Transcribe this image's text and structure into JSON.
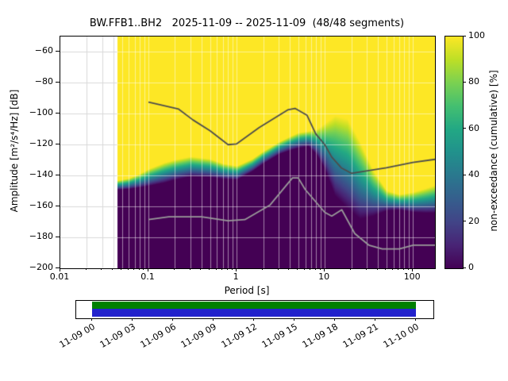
{
  "title": "BW.FFB1..BH2   2025-11-09 -- 2025-11-09  (48/48 segments)",
  "axes": {
    "xlabel": "Period [s]",
    "ylabel": "Amplitude [m²/s⁴/Hz] [dB]",
    "x_tick_labels": [
      "0.01",
      "0.1",
      "1",
      "10",
      "100"
    ],
    "x_tick_values": [
      0.01,
      0.1,
      1,
      10,
      100
    ],
    "x_range": [
      0.01,
      178
    ],
    "x_scale": "log",
    "y_tick_labels": [
      "−60",
      "−80",
      "−100",
      "−120",
      "−140",
      "−160",
      "−180",
      "−200"
    ],
    "y_tick_values": [
      -60,
      -80,
      -100,
      -120,
      -140,
      -160,
      -180,
      -200
    ],
    "y_range": [
      -200,
      -50
    ],
    "grid": true
  },
  "colorbar": {
    "label": "non-exceedance (cumulative) [%]",
    "tick_labels": [
      "0",
      "20",
      "40",
      "60",
      "80",
      "100"
    ],
    "tick_values": [
      0,
      20,
      40,
      60,
      80,
      100
    ],
    "range": [
      0,
      100
    ],
    "colormap": "viridis"
  },
  "chart_data": {
    "type": "heatmap",
    "title": "BW.FFB1..BH2   2025-11-09 -- 2025-11-09  (48/48 segments)",
    "station": "BW.FFB1..BH2",
    "date_range": "2025-11-09 -- 2025-11-09",
    "segments_used": "48/48",
    "xlabel": "Period [s]",
    "ylabel": "Amplitude [m²/s⁴/Hz] [dB]",
    "value_label": "non-exceedance (cumulative) [%]",
    "x_range_s": [
      0.01,
      178
    ],
    "y_range_db": [
      -200,
      -50
    ],
    "data_period_range_s": [
      0.044,
      178
    ],
    "periods_s": [
      0.044,
      0.06,
      0.08,
      0.1,
      0.15,
      0.2,
      0.3,
      0.5,
      0.7,
      1.0,
      1.5,
      2.0,
      3.0,
      4.0,
      5.0,
      6.5,
      8.0,
      10,
      13,
      18,
      25,
      35,
      50,
      70,
      100,
      140,
      178
    ],
    "cumulative_center_db": [
      -146,
      -145,
      -143,
      -141,
      -138,
      -136,
      -134,
      -135,
      -137,
      -138,
      -133,
      -128,
      -122,
      -119,
      -117,
      -116,
      -118,
      -121,
      -127,
      -132,
      -143,
      -151,
      -156,
      -157,
      -157,
      -156,
      -155
    ],
    "cumulative_spread_db": [
      6,
      7,
      9,
      11,
      13,
      13,
      13,
      12,
      10,
      9,
      8,
      8,
      8,
      9,
      10,
      10,
      16,
      30,
      52,
      58,
      50,
      30,
      13,
      10,
      13,
      16,
      18
    ],
    "noise_model_high_db": [
      [
        0.1,
        -92.5
      ],
      [
        0.22,
        -97
      ],
      [
        0.32,
        -104
      ],
      [
        0.5,
        -111
      ],
      [
        0.8,
        -120
      ],
      [
        1.0,
        -119.5
      ],
      [
        1.8,
        -109
      ],
      [
        3.8,
        -97.5
      ],
      [
        4.6,
        -96.5
      ],
      [
        6.3,
        -101
      ],
      [
        7.9,
        -113
      ],
      [
        10,
        -120
      ],
      [
        12,
        -128
      ],
      [
        15.4,
        -135
      ],
      [
        20,
        -138.5
      ],
      [
        50,
        -135
      ],
      [
        100,
        -131.5
      ],
      [
        178,
        -129.5
      ]
    ],
    "noise_model_low_db": [
      [
        0.1,
        -168.5
      ],
      [
        0.17,
        -166.7
      ],
      [
        0.4,
        -166.7
      ],
      [
        0.8,
        -169.2
      ],
      [
        1.24,
        -168.5
      ],
      [
        2.4,
        -159
      ],
      [
        4.3,
        -141.5
      ],
      [
        5.0,
        -141.5
      ],
      [
        6.0,
        -149
      ],
      [
        10,
        -163.8
      ],
      [
        12,
        -166.2
      ],
      [
        15.6,
        -162.1
      ],
      [
        21.9,
        -177.5
      ],
      [
        31.6,
        -185
      ],
      [
        45,
        -187.5
      ],
      [
        70,
        -187.5
      ],
      [
        101,
        -185
      ],
      [
        178,
        -185
      ]
    ]
  },
  "timeline": {
    "tick_labels": [
      "11-09 00",
      "11-09 03",
      "11-09 06",
      "11-09 09",
      "11-09 12",
      "11-09 15",
      "11-09 18",
      "11-09 21",
      "11-10 00"
    ],
    "coverage_start": "11-09 00",
    "coverage_end": "11-10 00"
  },
  "colors": {
    "viridis_stops": [
      "#440154",
      "#482475",
      "#414487",
      "#355f8d",
      "#2a788e",
      "#21918c",
      "#22a884",
      "#44bf70",
      "#7ad151",
      "#bddf26",
      "#fde725"
    ],
    "noise_model_high": "#4d4d4d",
    "noise_model_low": "#9a9a9a",
    "grid_over_data": "rgba(255,255,255,0.5)",
    "grid_no_data": "#d9d9d9",
    "timeline_green": "#008000",
    "timeline_blue": "#2222cc"
  }
}
